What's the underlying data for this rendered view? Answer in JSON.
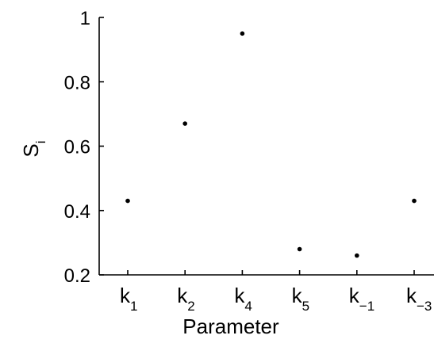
{
  "chart_data": {
    "type": "scatter",
    "xlabel": "Parameter",
    "ylabel": {
      "main": "S",
      "sub": "i"
    },
    "categories": [
      {
        "main": "k",
        "sub": "1"
      },
      {
        "main": "k",
        "sub": "2"
      },
      {
        "main": "k",
        "sub": "4"
      },
      {
        "main": "k",
        "sub": "5"
      },
      {
        "main": "k",
        "sub": "−1"
      },
      {
        "main": "k",
        "sub": "−3"
      }
    ],
    "values": [
      0.43,
      0.67,
      0.95,
      0.28,
      0.26,
      0.43
    ],
    "ylim": [
      0.2,
      1.0
    ],
    "yticks": [
      "0.2",
      "0.4",
      "0.6",
      "0.8",
      "1"
    ],
    "grid": false
  }
}
